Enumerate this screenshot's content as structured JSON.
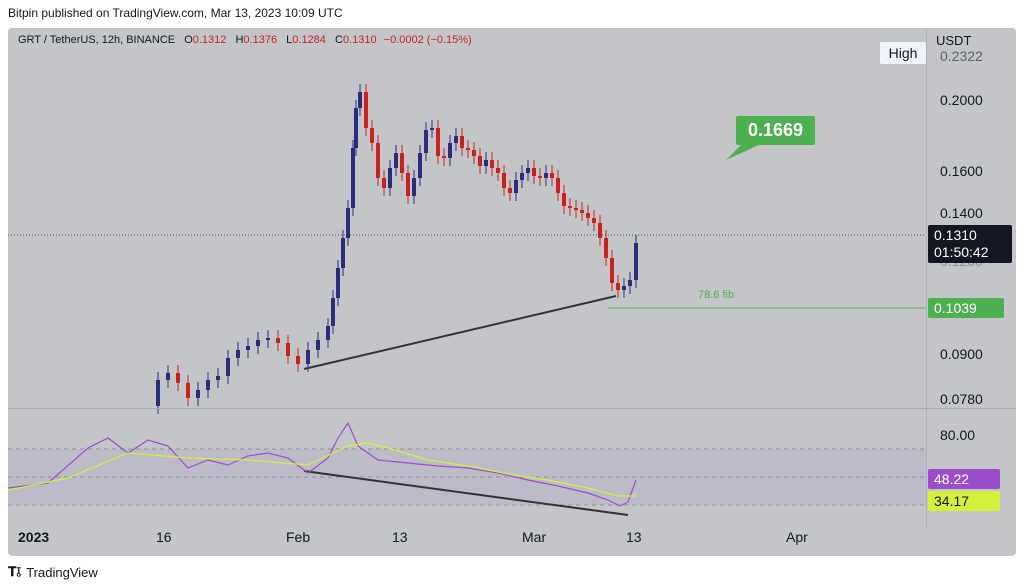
{
  "header": {
    "published": "Bitpin published on TradingView.com, Mar 13, 2023 10:09 UTC"
  },
  "legend": {
    "symbol": "GRT / TetherUS, 12h, BINANCE",
    "o_label": "O",
    "o_value": "0.1312",
    "h_label": "H",
    "h_value": "0.1376",
    "l_label": "L",
    "l_value": "0.1284",
    "c_label": "C",
    "c_value": "0.1310",
    "change": "−0.0002 (−0.15%)"
  },
  "price_scale": {
    "currency": "USDT",
    "high_badge": "High",
    "high_value": "0.2322",
    "ticks": [
      "0.2000",
      "0.1600",
      "0.1400",
      "0.1200",
      "0.0900",
      "0.0780"
    ],
    "current_price": "0.1310",
    "countdown": "01:50:42",
    "fib_value": "0.1039"
  },
  "annotations": {
    "target": "0.1669",
    "fib_label": "78.6 fib"
  },
  "rsi_scale": {
    "ticks": [
      "80.00"
    ],
    "rsi_value": "48.22",
    "rsi_ma_value": "34.17"
  },
  "time_axis": {
    "labels": [
      "2023",
      "16",
      "Feb",
      "13",
      "Mar",
      "13",
      "Apr"
    ]
  },
  "footer": {
    "brand": "TradingView"
  },
  "colors": {
    "up": "#2a2e7a",
    "down": "#c8221f",
    "fib": "#4caf50",
    "rsi": "#9c4dcc",
    "rsi_ma": "#d4f03a"
  },
  "chart_data": {
    "type": "candlestick",
    "symbol": "GRT / TetherUS",
    "interval": "12h",
    "last_close": 0.131,
    "target": 0.1669,
    "fib_78_6": 0.1039,
    "rsi_last": 48.22,
    "rsi_ma_last": 34.17
  }
}
